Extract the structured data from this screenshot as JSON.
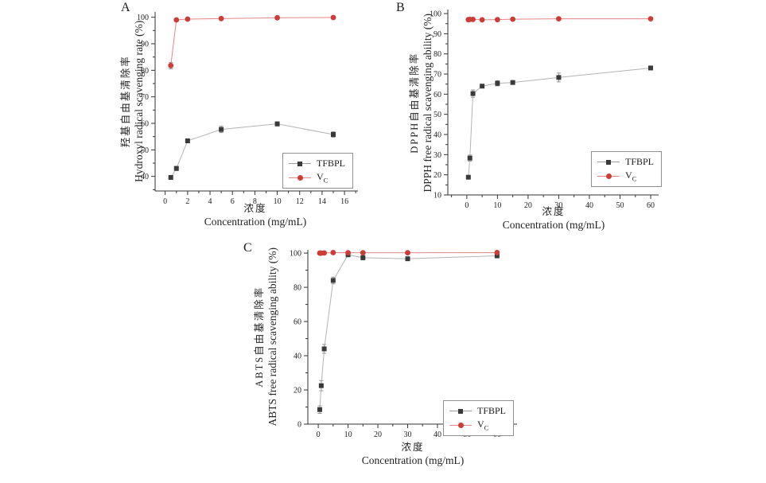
{
  "figure_type": "three-panel line/scatter figure, antioxidant scavenging assays",
  "colors": {
    "background": "#ffffff",
    "axis": "#333333",
    "tick_text": "#222222",
    "tfbpl_marker": "#3a3a3a",
    "tfbpl_line": "#b3b3b3",
    "vc_marker": "#cd3c37",
    "vc_line": "#e08a85",
    "error_bar": "#7a7a7a",
    "legend_border": "#8f8f8f"
  },
  "legend": {
    "tfbpl": "TFBPL",
    "vc_main": "V",
    "vc_sub": "C"
  },
  "chart_data": [
    {
      "id": "A",
      "type": "line",
      "panel_label": "A",
      "ylabel_cn": "羟基自由基清除率",
      "ylabel_en": "Hydroxyl radical scavenging rate (%)",
      "xlabel_cn": "浓度",
      "xlabel_en": "Concentration (mg/mL)",
      "x": [
        0.5,
        1,
        2,
        5,
        10,
        15
      ],
      "series": [
        {
          "name": "TFBPL",
          "values": [
            39.6,
            43.0,
            53.4,
            57.7,
            59.8,
            55.8
          ],
          "errors": [
            0.6,
            0.8,
            0.7,
            1.2,
            0.8,
            1.0
          ]
        },
        {
          "name": "VC",
          "values": [
            81.8,
            99.0,
            99.3,
            99.5,
            99.8,
            99.9
          ],
          "errors": [
            1.2,
            0.5,
            0.4,
            0.4,
            0.3,
            0.3
          ]
        }
      ],
      "xlim": [
        -0.9,
        17.2
      ],
      "ylim": [
        34.5,
        102
      ],
      "xticks": [
        0,
        2,
        4,
        6,
        8,
        10,
        12,
        14,
        16
      ],
      "yticks": [
        40,
        50,
        60,
        70,
        80,
        90,
        100
      ],
      "x_minor_step": 1,
      "y_minor_step": 5,
      "grid": false,
      "legend_entries": [
        "TFBPL",
        "VC"
      ],
      "legend_position": "bottom-right"
    },
    {
      "id": "B",
      "type": "line",
      "panel_label": "B",
      "ylabel_cn": "DPPH自由基清除率",
      "ylabel_en": "DPPH free radical scavenging ability (%)",
      "xlabel_cn": "浓度",
      "xlabel_en": "Concentration (mg/mL)",
      "x": [
        0.5,
        1,
        2,
        5,
        10,
        15,
        30,
        60
      ],
      "series": [
        {
          "name": "TFBPL",
          "values": [
            18.8,
            28.3,
            60.3,
            64.0,
            65.4,
            65.8,
            68.3,
            73.0
          ],
          "errors": [
            0.8,
            1.5,
            1.8,
            0.6,
            1.3,
            0.8,
            2.2,
            0.8
          ]
        },
        {
          "name": "VC",
          "values": [
            97.0,
            97.1,
            97.1,
            96.9,
            97.0,
            97.2,
            97.4,
            97.4
          ],
          "errors": [
            0.3,
            0.3,
            0.3,
            0.3,
            0.3,
            0.3,
            0.3,
            0.3
          ]
        }
      ],
      "xlim": [
        -6.2,
        62.6
      ],
      "ylim": [
        10,
        102
      ],
      "xticks": [
        0,
        10,
        20,
        30,
        40,
        50,
        60
      ],
      "yticks": [
        10,
        20,
        30,
        40,
        50,
        60,
        70,
        80,
        90,
        100
      ],
      "x_minor_step": 5,
      "y_minor_step": 5,
      "grid": false,
      "legend_entries": [
        "TFBPL",
        "VC"
      ],
      "legend_position": "bottom-right"
    },
    {
      "id": "C",
      "type": "line",
      "panel_label": "C",
      "ylabel_cn": "ABTS自由基清除率",
      "ylabel_en": "ABTS free radical scavenging ability (%)",
      "xlabel_cn": "浓度",
      "xlabel_en": "Concentration (mg/mL)",
      "x": [
        0.5,
        1,
        2,
        5,
        10,
        15,
        30,
        60
      ],
      "series": [
        {
          "name": "TFBPL",
          "values": [
            8.5,
            22.5,
            44.0,
            84.0,
            99.0,
            97.3,
            96.7,
            98.4
          ],
          "errors": [
            2.2,
            3.0,
            2.6,
            2.0,
            1.0,
            1.3,
            1.0,
            0.9
          ]
        },
        {
          "name": "VC",
          "values": [
            100.0,
            100.0,
            100.1,
            100.3,
            100.2,
            100.2,
            100.2,
            100.3
          ],
          "errors": [
            0.2,
            0.2,
            0.2,
            0.2,
            0.2,
            0.2,
            0.2,
            0.2
          ]
        }
      ],
      "xlim": [
        -3.5,
        66.7
      ],
      "ylim": [
        0,
        101.9
      ],
      "xticks": [
        0,
        10,
        20,
        30,
        40,
        50,
        60
      ],
      "yticks": [
        0,
        20,
        40,
        60,
        80,
        100
      ],
      "x_minor_step": 5,
      "y_minor_step": 10,
      "grid": false,
      "legend_entries": [
        "TFBPL",
        "VC"
      ],
      "legend_position": "bottom-right"
    }
  ]
}
